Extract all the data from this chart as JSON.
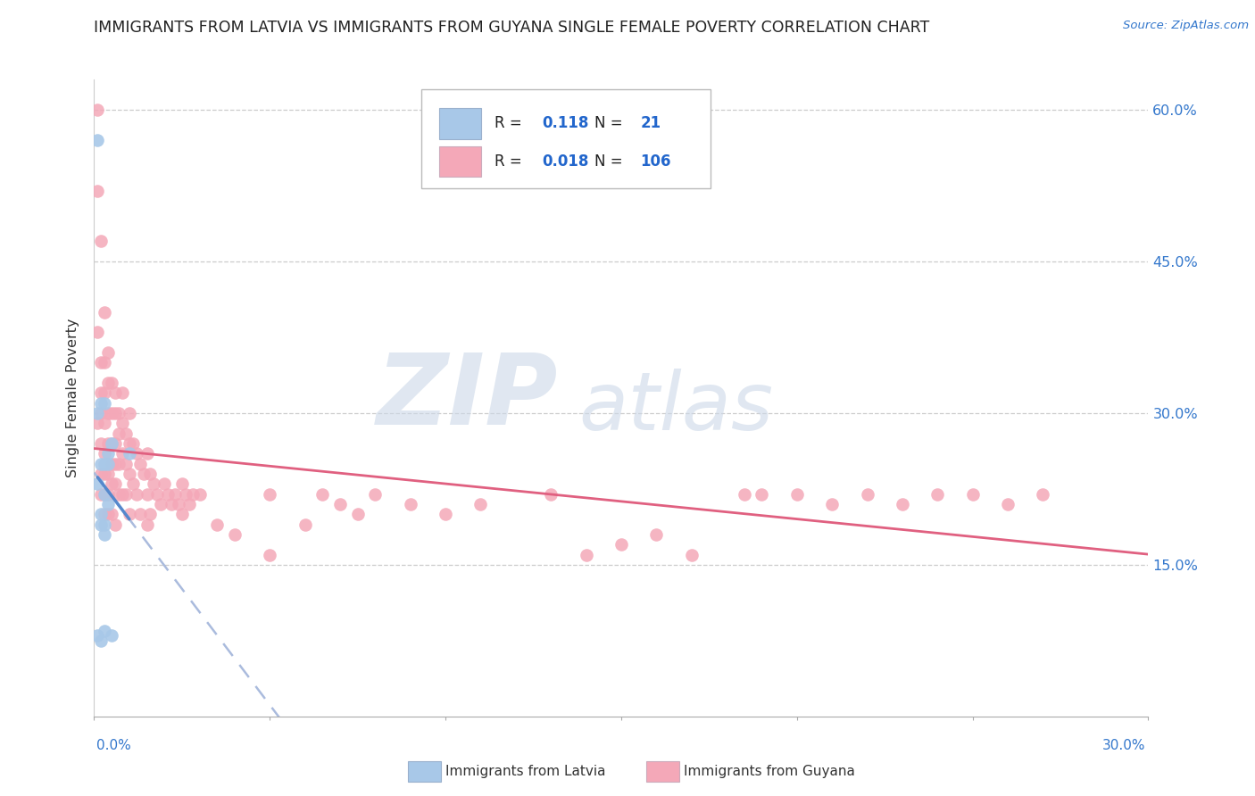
{
  "title": "IMMIGRANTS FROM LATVIA VS IMMIGRANTS FROM GUYANA SINGLE FEMALE POVERTY CORRELATION CHART",
  "source": "Source: ZipAtlas.com",
  "ylabel": "Single Female Poverty",
  "color_latvia": "#a8c8e8",
  "color_guyana": "#f4a8b8",
  "color_latvia_line": "#5588cc",
  "color_latvia_dash": "#aabbdd",
  "color_guyana_line": "#e06080",
  "watermark_color": "#ccd8e8",
  "xlim": [
    0.0,
    0.3
  ],
  "ylim": [
    0.0,
    0.63
  ],
  "yticks": [
    0.15,
    0.3,
    0.45,
    0.6
  ],
  "ytick_labels": [
    "15.0%",
    "30.0%",
    "45.0%",
    "60.0%"
  ],
  "r_latvia": "0.118",
  "n_latvia": "21",
  "r_guyana": "0.018",
  "n_guyana": "106",
  "latvia_x": [
    0.001,
    0.001,
    0.002,
    0.001,
    0.002,
    0.003,
    0.003,
    0.004,
    0.002,
    0.003,
    0.004,
    0.005,
    0.003,
    0.002,
    0.001,
    0.002,
    0.003,
    0.003,
    0.004,
    0.005,
    0.01
  ],
  "latvia_y": [
    0.57,
    0.08,
    0.31,
    0.3,
    0.25,
    0.31,
    0.25,
    0.26,
    0.2,
    0.19,
    0.21,
    0.27,
    0.085,
    0.19,
    0.23,
    0.075,
    0.22,
    0.18,
    0.25,
    0.08,
    0.26
  ],
  "guyana_x": [
    0.001,
    0.001,
    0.001,
    0.001,
    0.002,
    0.002,
    0.002,
    0.002,
    0.002,
    0.002,
    0.002,
    0.003,
    0.003,
    0.003,
    0.003,
    0.003,
    0.003,
    0.003,
    0.003,
    0.004,
    0.004,
    0.004,
    0.004,
    0.004,
    0.004,
    0.004,
    0.005,
    0.005,
    0.005,
    0.005,
    0.005,
    0.005,
    0.006,
    0.006,
    0.006,
    0.006,
    0.006,
    0.006,
    0.007,
    0.007,
    0.007,
    0.007,
    0.008,
    0.008,
    0.008,
    0.008,
    0.009,
    0.009,
    0.009,
    0.01,
    0.01,
    0.01,
    0.01,
    0.011,
    0.011,
    0.012,
    0.012,
    0.013,
    0.013,
    0.014,
    0.015,
    0.015,
    0.015,
    0.016,
    0.016,
    0.017,
    0.018,
    0.019,
    0.02,
    0.021,
    0.022,
    0.023,
    0.024,
    0.025,
    0.025,
    0.026,
    0.027,
    0.028,
    0.03,
    0.035,
    0.04,
    0.05,
    0.05,
    0.06,
    0.065,
    0.07,
    0.075,
    0.08,
    0.09,
    0.1,
    0.11,
    0.13,
    0.14,
    0.15,
    0.16,
    0.17,
    0.185,
    0.19,
    0.2,
    0.21,
    0.22,
    0.23,
    0.24,
    0.25,
    0.26,
    0.27
  ],
  "guyana_y": [
    0.6,
    0.52,
    0.38,
    0.29,
    0.47,
    0.35,
    0.32,
    0.3,
    0.27,
    0.24,
    0.22,
    0.4,
    0.35,
    0.32,
    0.29,
    0.26,
    0.24,
    0.22,
    0.2,
    0.36,
    0.33,
    0.3,
    0.27,
    0.24,
    0.22,
    0.2,
    0.33,
    0.3,
    0.27,
    0.25,
    0.23,
    0.2,
    0.32,
    0.3,
    0.27,
    0.25,
    0.23,
    0.19,
    0.3,
    0.28,
    0.25,
    0.22,
    0.32,
    0.29,
    0.26,
    0.22,
    0.28,
    0.25,
    0.22,
    0.3,
    0.27,
    0.24,
    0.2,
    0.27,
    0.23,
    0.26,
    0.22,
    0.25,
    0.2,
    0.24,
    0.26,
    0.22,
    0.19,
    0.24,
    0.2,
    0.23,
    0.22,
    0.21,
    0.23,
    0.22,
    0.21,
    0.22,
    0.21,
    0.23,
    0.2,
    0.22,
    0.21,
    0.22,
    0.22,
    0.19,
    0.18,
    0.22,
    0.16,
    0.19,
    0.22,
    0.21,
    0.2,
    0.22,
    0.21,
    0.2,
    0.21,
    0.22,
    0.16,
    0.17,
    0.18,
    0.16,
    0.22,
    0.22,
    0.22,
    0.21,
    0.22,
    0.21,
    0.22,
    0.22,
    0.21,
    0.22
  ]
}
